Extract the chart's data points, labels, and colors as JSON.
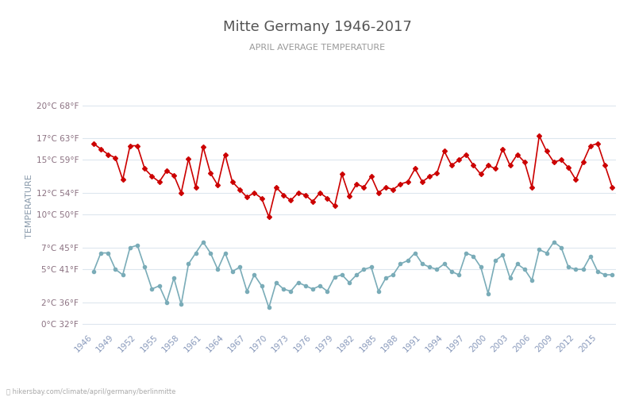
{
  "title": "Mitte Germany 1946-2017",
  "subtitle": "APRIL AVERAGE TEMPERATURE",
  "ylabel": "TEMPERATURE",
  "watermark": "hikersbay.com/climate/april/germany/berlinmitte",
  "bg_color": "#ffffff",
  "grid_color": "#dde6ee",
  "years": [
    1946,
    1947,
    1948,
    1949,
    1950,
    1951,
    1952,
    1953,
    1954,
    1955,
    1956,
    1957,
    1958,
    1959,
    1960,
    1961,
    1962,
    1963,
    1964,
    1965,
    1966,
    1967,
    1968,
    1969,
    1970,
    1971,
    1972,
    1973,
    1974,
    1975,
    1976,
    1977,
    1978,
    1979,
    1980,
    1981,
    1982,
    1983,
    1984,
    1985,
    1986,
    1987,
    1988,
    1989,
    1990,
    1991,
    1992,
    1993,
    1994,
    1995,
    1996,
    1997,
    1998,
    1999,
    2000,
    2001,
    2002,
    2003,
    2004,
    2005,
    2006,
    2007,
    2008,
    2009,
    2010,
    2011,
    2012,
    2013,
    2014,
    2015,
    2016,
    2017
  ],
  "day_temps": [
    16.5,
    16.0,
    15.5,
    15.2,
    13.2,
    16.3,
    16.3,
    14.2,
    13.5,
    13.0,
    14.0,
    13.6,
    12.0,
    15.1,
    12.5,
    16.2,
    13.8,
    12.7,
    15.5,
    13.0,
    12.3,
    11.6,
    12.0,
    11.5,
    9.8,
    12.5,
    11.8,
    11.3,
    12.0,
    11.8,
    11.2,
    12.0,
    11.5,
    10.8,
    13.7,
    11.7,
    12.8,
    12.5,
    13.5,
    12.0,
    12.5,
    12.3,
    12.8,
    13.0,
    14.2,
    13.0,
    13.5,
    13.8,
    15.8,
    14.5,
    15.0,
    15.5,
    14.5,
    13.7,
    14.5,
    14.2,
    16.0,
    14.5,
    15.5,
    14.8,
    12.5,
    17.2,
    15.8,
    14.8,
    15.0,
    14.3,
    13.2,
    14.8,
    16.3,
    16.5,
    14.5,
    12.5
  ],
  "night_temps": [
    4.8,
    6.5,
    6.5,
    5.0,
    4.5,
    7.0,
    7.2,
    5.2,
    3.2,
    3.5,
    2.0,
    4.2,
    1.8,
    5.5,
    6.5,
    7.5,
    6.5,
    5.0,
    6.5,
    4.8,
    5.2,
    3.0,
    4.5,
    3.5,
    1.5,
    3.8,
    3.2,
    3.0,
    3.8,
    3.5,
    3.2,
    3.5,
    3.0,
    4.3,
    4.5,
    3.8,
    4.5,
    5.0,
    5.2,
    3.0,
    4.2,
    4.5,
    5.5,
    5.8,
    6.5,
    5.5,
    5.2,
    5.0,
    5.5,
    4.8,
    4.5,
    6.5,
    6.2,
    5.2,
    2.8,
    5.8,
    6.3,
    4.2,
    5.5,
    5.0,
    4.0,
    6.8,
    6.5,
    7.5,
    7.0,
    5.2,
    5.0,
    5.0,
    6.2,
    4.8,
    4.5,
    4.5
  ],
  "day_color": "#cc0000",
  "night_color": "#7aacb8",
  "day_marker": "D",
  "night_marker": "o",
  "marker_size": 3,
  "title_color": "#555555",
  "subtitle_color": "#999999",
  "axis_label_color": "#8a7080",
  "xtick_color": "#8899bb",
  "yticks_c": [
    0,
    2,
    5,
    7,
    10,
    12,
    15,
    17,
    20
  ],
  "yticks_f": [
    32,
    36,
    41,
    45,
    50,
    54,
    59,
    63,
    68
  ],
  "ylim": [
    -0.5,
    22
  ],
  "xlim": [
    1944.5,
    2017.5
  ]
}
